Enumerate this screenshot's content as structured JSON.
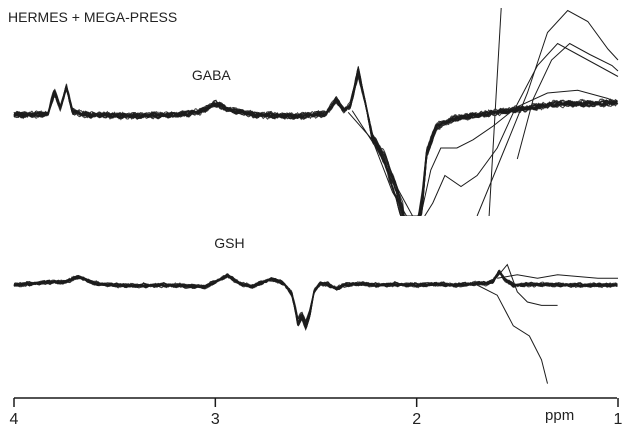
{
  "chart_data": {
    "type": "line",
    "title": "HERMES + MEGA-PRESS",
    "xlabel": "ppm",
    "x_reversed": true,
    "xlim": [
      4,
      1
    ],
    "x_ticks": [
      4,
      3,
      2,
      1
    ],
    "x_tick_labels": [
      "4",
      "3",
      "2",
      "1"
    ],
    "panels": [
      {
        "name": "gaba-panel",
        "peak_label": "GABA",
        "peak_label_ppm": 3.02,
        "n_traces": 16,
        "trace_spread": 0.02,
        "baseline": [
          [
            4.0,
            0.0
          ],
          [
            3.9,
            0.0
          ],
          [
            3.83,
            0.02
          ],
          [
            3.8,
            0.42
          ],
          [
            3.77,
            0.12
          ],
          [
            3.74,
            0.5
          ],
          [
            3.71,
            0.06
          ],
          [
            3.65,
            0.0
          ],
          [
            3.4,
            -0.02
          ],
          [
            3.2,
            0.0
          ],
          [
            3.08,
            0.05
          ],
          [
            3.0,
            0.2
          ],
          [
            2.92,
            0.08
          ],
          [
            2.8,
            0.0
          ],
          [
            2.6,
            -0.03
          ],
          [
            2.45,
            0.02
          ],
          [
            2.4,
            0.27
          ],
          [
            2.36,
            0.08
          ],
          [
            2.33,
            0.16
          ],
          [
            2.29,
            0.78
          ],
          [
            2.26,
            0.3
          ],
          [
            2.22,
            -0.4
          ],
          [
            2.16,
            -0.8
          ],
          [
            2.1,
            -1.4
          ],
          [
            2.07,
            -1.8
          ],
          [
            2.06,
            -2.2
          ],
          [
            2.0,
            -2.2
          ],
          [
            1.97,
            -1.5
          ],
          [
            1.95,
            -0.7
          ],
          [
            1.9,
            -0.2
          ],
          [
            1.8,
            -0.06
          ],
          [
            1.65,
            0.02
          ],
          [
            1.45,
            0.12
          ],
          [
            1.3,
            0.2
          ],
          [
            1.15,
            0.2
          ],
          [
            1.0,
            0.22
          ]
        ],
        "outliers": [
          [
            [
              2.34,
              0.05
            ],
            [
              2.22,
              -0.45
            ],
            [
              2.12,
              -1.4
            ],
            [
              2.05,
              -2.2
            ]
          ],
          [
            [
              2.32,
              0.08
            ],
            [
              2.2,
              -0.6
            ],
            [
              2.1,
              -1.3
            ],
            [
              2.02,
              -2.2
            ]
          ],
          [
            [
              1.98,
              -2.2
            ],
            [
              1.93,
              -1.0
            ],
            [
              1.88,
              -0.6
            ],
            [
              1.8,
              -0.6
            ],
            [
              1.72,
              -0.45
            ],
            [
              1.62,
              -0.2
            ],
            [
              1.5,
              0.15
            ],
            [
              1.35,
              0.4
            ],
            [
              1.2,
              0.45
            ],
            [
              1.05,
              0.3
            ],
            [
              1.0,
              0.2
            ]
          ],
          [
            [
              1.96,
              -2.2
            ],
            [
              1.92,
              -1.6
            ],
            [
              1.86,
              -1.1
            ],
            [
              1.78,
              -1.3
            ],
            [
              1.7,
              -1.1
            ],
            [
              1.6,
              -0.6
            ],
            [
              1.5,
              0.2
            ],
            [
              1.4,
              0.9
            ],
            [
              1.3,
              1.3
            ],
            [
              1.2,
              1.1
            ],
            [
              1.1,
              0.9
            ],
            [
              1.0,
              0.7
            ]
          ],
          [
            [
              1.7,
              -2.2
            ],
            [
              1.55,
              -0.5
            ],
            [
              1.45,
              0.4
            ],
            [
              1.35,
              1.5
            ],
            [
              1.25,
              1.9
            ],
            [
              1.15,
              1.7
            ],
            [
              1.05,
              1.2
            ],
            [
              1.0,
              1.0
            ]
          ],
          [
            [
              1.64,
              -2.2
            ],
            [
              1.58,
              2.6
            ]
          ],
          [
            [
              1.5,
              -0.8
            ],
            [
              1.42,
              0.3
            ],
            [
              1.33,
              1.0
            ],
            [
              1.24,
              1.3
            ],
            [
              1.14,
              1.1
            ],
            [
              1.03,
              0.9
            ],
            [
              1.0,
              0.8
            ]
          ]
        ]
      },
      {
        "name": "gsh-panel",
        "peak_label": "GSH",
        "peak_label_ppm": 2.93,
        "n_traces": 16,
        "trace_spread": 0.025,
        "baseline": [
          [
            4.0,
            0.0
          ],
          [
            3.9,
            0.05
          ],
          [
            3.8,
            0.1
          ],
          [
            3.75,
            0.08
          ],
          [
            3.68,
            0.25
          ],
          [
            3.6,
            0.05
          ],
          [
            3.5,
            0.0
          ],
          [
            3.4,
            -0.02
          ],
          [
            3.25,
            0.0
          ],
          [
            3.05,
            -0.05
          ],
          [
            2.94,
            0.28
          ],
          [
            2.88,
            0.05
          ],
          [
            2.82,
            -0.05
          ],
          [
            2.78,
            0.05
          ],
          [
            2.72,
            0.18
          ],
          [
            2.66,
            0.05
          ],
          [
            2.62,
            -0.25
          ],
          [
            2.6,
            -0.8
          ],
          [
            2.59,
            -1.1
          ],
          [
            2.57,
            -0.9
          ],
          [
            2.55,
            -1.2
          ],
          [
            2.53,
            -0.8
          ],
          [
            2.51,
            -0.2
          ],
          [
            2.48,
            0.05
          ],
          [
            2.44,
            0.02
          ],
          [
            2.4,
            -0.1
          ],
          [
            2.36,
            0.0
          ],
          [
            2.3,
            0.04
          ],
          [
            2.2,
            0.0
          ],
          [
            2.1,
            0.02
          ],
          [
            2.0,
            0.0
          ],
          [
            1.9,
            0.03
          ],
          [
            1.8,
            0.0
          ],
          [
            1.7,
            0.05
          ],
          [
            1.65,
            0.05
          ],
          [
            1.62,
            0.12
          ],
          [
            1.59,
            0.4
          ],
          [
            1.56,
            0.15
          ],
          [
            1.52,
            0.0
          ],
          [
            1.4,
            0.02
          ],
          [
            1.2,
            0.0
          ],
          [
            1.0,
            0.0
          ]
        ],
        "outliers": [
          [
            [
              1.7,
              0.0
            ],
            [
              1.6,
              -0.3
            ],
            [
              1.52,
              -1.2
            ],
            [
              1.44,
              -1.5
            ],
            [
              1.38,
              -2.2
            ],
            [
              1.35,
              -2.9
            ]
          ],
          [
            [
              1.62,
              0.1
            ],
            [
              1.55,
              0.6
            ],
            [
              1.5,
              -0.2
            ],
            [
              1.45,
              -0.5
            ],
            [
              1.38,
              -0.6
            ],
            [
              1.3,
              -0.6
            ]
          ],
          [
            [
              1.6,
              0.2
            ],
            [
              1.5,
              0.3
            ],
            [
              1.4,
              0.2
            ],
            [
              1.3,
              0.3
            ],
            [
              1.1,
              0.2
            ],
            [
              1.0,
              0.2
            ]
          ]
        ]
      }
    ]
  }
}
